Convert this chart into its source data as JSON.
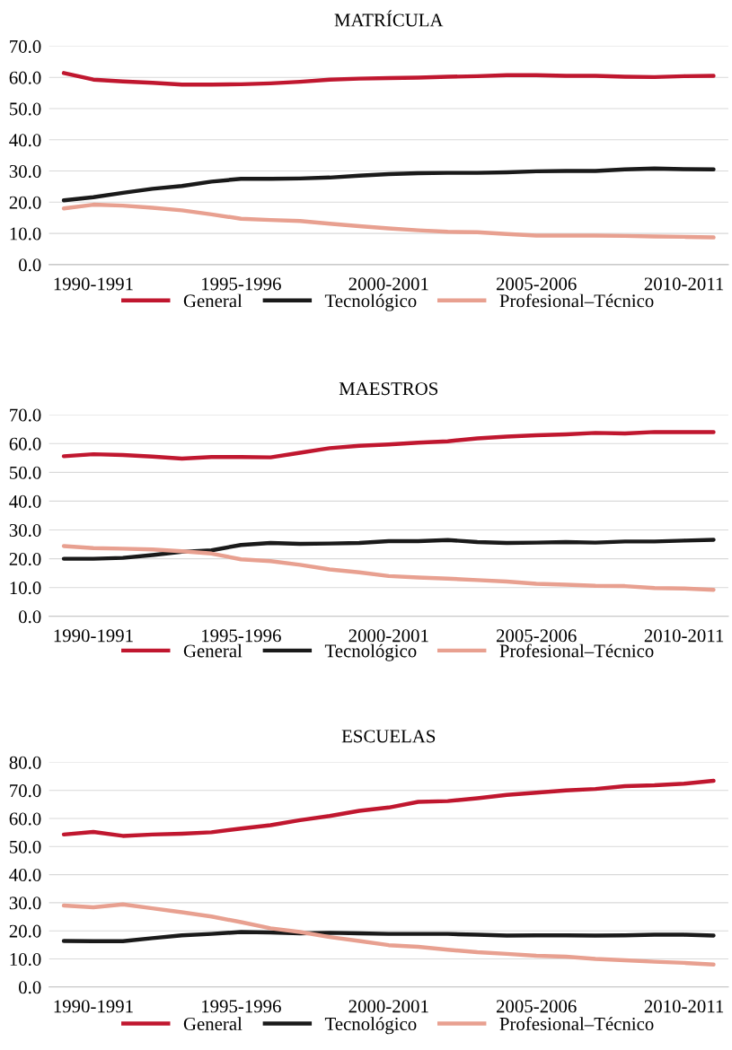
{
  "chart_data": [
    {
      "type": "line",
      "title": "MATRÍCULA",
      "categories": [
        null,
        "1990-1991",
        null,
        null,
        null,
        null,
        "1995-1996",
        null,
        null,
        null,
        null,
        "2000-2001",
        null,
        null,
        null,
        null,
        "2005-2006",
        null,
        null,
        null,
        null,
        "2010-2011",
        null
      ],
      "ylim": [
        0,
        70
      ],
      "yticks": [
        {
          "value": 0,
          "label": "0.0"
        },
        {
          "value": 10,
          "label": "10.0"
        },
        {
          "value": 20,
          "label": "20.0"
        },
        {
          "value": 30,
          "label": "30.0"
        },
        {
          "value": 40,
          "label": "40.0"
        },
        {
          "value": 50,
          "label": "50.0"
        },
        {
          "value": 60,
          "label": "60.0"
        },
        {
          "value": 70,
          "label": "70.0"
        }
      ],
      "grid": "y",
      "legend": "bottom",
      "marker": "none",
      "line_style": "solid",
      "series": [
        {
          "name": "General",
          "color": "#c0172f",
          "values": [
            61.4,
            59.3,
            58.7,
            58.3,
            57.7,
            57.7,
            57.8,
            58.1,
            58.6,
            59.3,
            59.6,
            59.8,
            59.9,
            60.2,
            60.4,
            60.7,
            60.7,
            60.5,
            60.5,
            60.2,
            60.1,
            60.4,
            60.5
          ]
        },
        {
          "name": "Tecnológico",
          "color": "#1a1a1a",
          "values": [
            20.6,
            21.6,
            23.0,
            24.3,
            25.2,
            26.6,
            27.5,
            27.5,
            27.6,
            27.9,
            28.5,
            29.0,
            29.3,
            29.4,
            29.4,
            29.6,
            29.9,
            30.0,
            30.0,
            30.5,
            30.8,
            30.6,
            30.5
          ]
        },
        {
          "name": "Profesional–Técnico",
          "color": "#e8a090",
          "values": [
            18.0,
            19.2,
            18.9,
            18.2,
            17.4,
            16.1,
            14.7,
            14.3,
            14.0,
            13.1,
            12.3,
            11.6,
            11.0,
            10.5,
            10.4,
            9.8,
            9.3,
            9.3,
            9.3,
            9.2,
            9.0,
            8.9,
            8.7
          ]
        }
      ]
    },
    {
      "type": "line",
      "title": "MAESTROS",
      "categories": [
        null,
        "1990-1991",
        null,
        null,
        null,
        null,
        "1995-1996",
        null,
        null,
        null,
        null,
        "2000-2001",
        null,
        null,
        null,
        null,
        "2005-2006",
        null,
        null,
        null,
        null,
        "2010-2011",
        null
      ],
      "ylim": [
        0,
        70
      ],
      "yticks": [
        {
          "value": 0,
          "label": "0.0"
        },
        {
          "value": 10,
          "label": "10.0"
        },
        {
          "value": 20,
          "label": "20.0"
        },
        {
          "value": 30,
          "label": "30.0"
        },
        {
          "value": 40,
          "label": "40.0"
        },
        {
          "value": 50,
          "label": "50.0"
        },
        {
          "value": 60,
          "label": "60.0"
        },
        {
          "value": 70,
          "label": "70.0"
        }
      ],
      "grid": "y",
      "legend": "bottom",
      "marker": "none",
      "line_style": "solid",
      "series": [
        {
          "name": "General",
          "color": "#c0172f",
          "values": [
            55.6,
            56.3,
            56.0,
            55.5,
            54.8,
            55.3,
            55.3,
            55.2,
            56.8,
            58.4,
            59.2,
            59.7,
            60.3,
            60.8,
            61.8,
            62.4,
            62.9,
            63.2,
            63.7,
            63.5,
            64.0,
            64.0,
            64.0
          ]
        },
        {
          "name": "Tecnológico",
          "color": "#1a1a1a",
          "values": [
            20.0,
            20.0,
            20.3,
            21.3,
            22.4,
            22.9,
            24.8,
            25.5,
            25.2,
            25.3,
            25.5,
            26.1,
            26.1,
            26.5,
            25.8,
            25.5,
            25.6,
            25.8,
            25.6,
            26.0,
            26.0,
            26.3,
            26.6
          ]
        },
        {
          "name": "Profesional–Técnico",
          "color": "#e8a090",
          "values": [
            24.4,
            23.7,
            23.5,
            23.2,
            22.6,
            21.8,
            19.8,
            19.2,
            17.9,
            16.3,
            15.3,
            14.0,
            13.5,
            13.1,
            12.6,
            12.1,
            11.3,
            11.0,
            10.6,
            10.5,
            9.8,
            9.7,
            9.2
          ]
        }
      ]
    },
    {
      "type": "line",
      "title": "ESCUELAS",
      "categories": [
        null,
        "1990-1991",
        null,
        null,
        null,
        null,
        "1995-1996",
        null,
        null,
        null,
        null,
        "2000-2001",
        null,
        null,
        null,
        null,
        "2005-2006",
        null,
        null,
        null,
        null,
        "2010-2011",
        null
      ],
      "ylim": [
        0,
        80
      ],
      "yticks": [
        {
          "value": 0,
          "label": "0.0"
        },
        {
          "value": 10,
          "label": "10.0"
        },
        {
          "value": 20,
          "label": "20.0"
        },
        {
          "value": 30,
          "label": "30.0"
        },
        {
          "value": 40,
          "label": "40.0"
        },
        {
          "value": 50,
          "label": "50.0"
        },
        {
          "value": 60,
          "label": "60.0"
        },
        {
          "value": 70,
          "label": "70.0"
        },
        {
          "value": 80,
          "label": "80.0"
        }
      ],
      "grid": "y",
      "legend": "bottom",
      "marker": "none",
      "line_style": "solid",
      "series": [
        {
          "name": "General",
          "color": "#c0172f",
          "values": [
            54.3,
            55.2,
            53.8,
            54.3,
            54.6,
            55.1,
            56.4,
            57.6,
            59.4,
            60.9,
            62.7,
            63.9,
            65.9,
            66.2,
            67.2,
            68.4,
            69.2,
            70.0,
            70.5,
            71.5,
            71.8,
            72.4,
            73.4
          ]
        },
        {
          "name": "Tecnológico",
          "color": "#1a1a1a",
          "values": [
            16.4,
            16.3,
            16.3,
            17.4,
            18.4,
            18.9,
            19.6,
            19.4,
            19.1,
            19.3,
            19.1,
            18.9,
            18.9,
            18.9,
            18.6,
            18.3,
            18.4,
            18.4,
            18.3,
            18.4,
            18.6,
            18.6,
            18.3
          ]
        },
        {
          "name": "Profesional–Técnico",
          "color": "#e8a090",
          "values": [
            29.0,
            28.4,
            29.4,
            28.0,
            26.6,
            25.1,
            23.1,
            20.9,
            19.6,
            17.8,
            16.4,
            14.9,
            14.3,
            13.3,
            12.4,
            11.8,
            11.1,
            10.8,
            10.0,
            9.5,
            9.0,
            8.6,
            8.0
          ]
        }
      ]
    }
  ]
}
